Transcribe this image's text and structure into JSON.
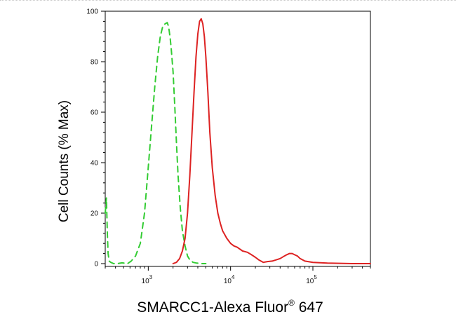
{
  "chart_data": {
    "type": "line",
    "xlabel": "SMARCC1-Alexa Fluor",
    "xlabel_superscript": "®",
    "xlabel_suffix": " 647",
    "ylabel": "Cell Counts (% Max)",
    "x_scale": "log",
    "xlim": [
      300,
      500000
    ],
    "ylim": [
      0,
      100
    ],
    "x_ticks": [
      {
        "base": "10",
        "exp": "3",
        "value": 1000
      },
      {
        "base": "10",
        "exp": "4",
        "value": 10000
      },
      {
        "base": "10",
        "exp": "5",
        "value": 100000
      }
    ],
    "y_ticks": [
      0,
      20,
      40,
      60,
      80,
      100
    ],
    "grid": false,
    "series": [
      {
        "style": "dashed",
        "color": "#33cc33",
        "x": [
          300,
          310,
          318,
          325,
          335,
          350,
          380,
          420,
          480,
          560,
          620,
          700,
          800,
          900,
          1000,
          1100,
          1200,
          1300,
          1400,
          1500,
          1600,
          1700,
          1760,
          1800,
          1850,
          1900,
          2000,
          2100,
          2200,
          2300,
          2450,
          2600,
          2800,
          3000,
          3200,
          3500,
          3900,
          4500,
          5000
        ],
        "y": [
          20,
          26,
          12,
          4,
          1,
          0.5,
          0,
          0,
          0.3,
          0,
          1,
          3,
          8,
          20,
          38,
          55,
          70,
          82,
          90,
          94,
          95,
          95.5,
          94,
          92,
          89,
          85,
          76,
          62,
          48,
          35,
          22,
          13,
          7,
          3,
          1.5,
          0.5,
          0.2,
          0,
          0
        ]
      },
      {
        "style": "solid",
        "color": "#dd2222",
        "x": [
          2000,
          2200,
          2400,
          2600,
          2800,
          3000,
          3200,
          3400,
          3600,
          3800,
          4000,
          4200,
          4400,
          4600,
          4800,
          5000,
          5300,
          5600,
          6000,
          6500,
          7000,
          7500,
          8000,
          9000,
          10000,
          11000,
          12000,
          14000,
          16000,
          18000,
          20000,
          22000,
          25000,
          28000,
          32000,
          36000,
          40000,
          45000,
          48000,
          52000,
          56000,
          60000,
          65000,
          70000,
          80000,
          100000,
          150000,
          300000,
          500000
        ],
        "y": [
          0,
          0.5,
          2,
          5,
          10,
          20,
          35,
          52,
          68,
          82,
          91,
          96,
          97,
          95,
          90,
          82,
          68,
          52,
          38,
          27,
          20,
          16,
          13,
          10,
          8,
          7,
          6.5,
          5,
          4.5,
          3.5,
          2.5,
          1.5,
          0.5,
          0.8,
          1,
          1.5,
          2,
          3,
          3.5,
          4,
          4,
          3.5,
          3,
          2,
          1,
          0.5,
          0.2,
          0,
          0
        ]
      }
    ]
  },
  "page": {
    "border_color": "#c8c8c8"
  }
}
